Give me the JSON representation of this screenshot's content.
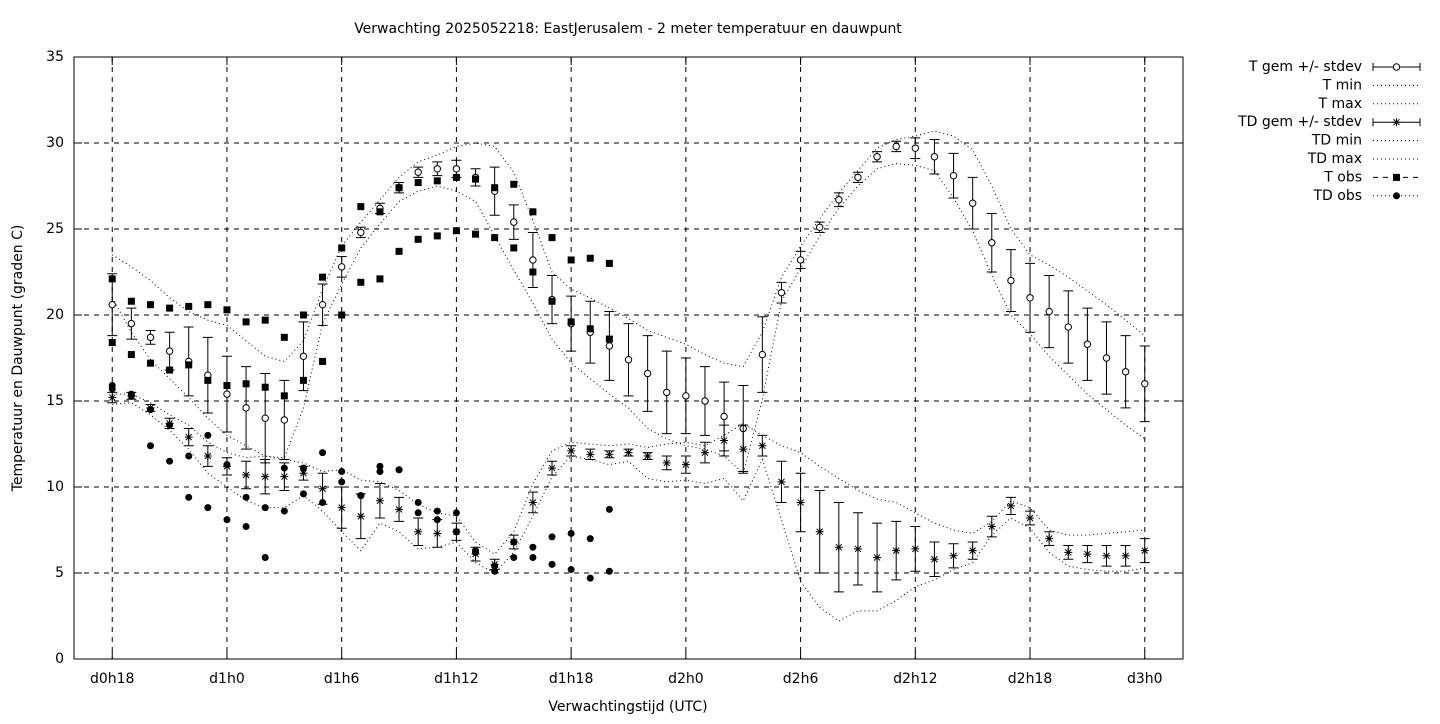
{
  "chart_data": {
    "type": "line",
    "title": "Verwachting 2025052218: EastJerusalem - 2 meter temperatuur en dauwpunt",
    "xlabel": "Verwachtingstijd (UTC)",
    "ylabel": "Temperatuur en Dauwpunt (graden C)",
    "xlim": [
      16,
      74
    ],
    "xticks": [
      {
        "value": 18,
        "label": "d0h18"
      },
      {
        "value": 24,
        "label": "d1h0"
      },
      {
        "value": 30,
        "label": "d1h6"
      },
      {
        "value": 36,
        "label": "d1h12"
      },
      {
        "value": 42,
        "label": "d1h18"
      },
      {
        "value": 48,
        "label": "d2h0"
      },
      {
        "value": 54,
        "label": "d2h6"
      },
      {
        "value": 60,
        "label": "d2h12"
      },
      {
        "value": 66,
        "label": "d2h18"
      },
      {
        "value": 72,
        "label": "d3h0"
      }
    ],
    "ylim": [
      0,
      35
    ],
    "yticks": [
      0,
      5,
      10,
      15,
      20,
      25,
      30,
      35
    ],
    "grid": true,
    "legend": "outside-right",
    "x": [
      18,
      19,
      20,
      21,
      22,
      23,
      24,
      25,
      26,
      27,
      28,
      29,
      30,
      31,
      32,
      33,
      34,
      35,
      36,
      37,
      38,
      39,
      40,
      41,
      42,
      43,
      44,
      45,
      46,
      47,
      48,
      49,
      50,
      51,
      52,
      53,
      54,
      55,
      56,
      57,
      58,
      59,
      60,
      61,
      62,
      63,
      64,
      65,
      66,
      67,
      68,
      69,
      70,
      71,
      72
    ],
    "series": [
      {
        "name": "T gem +/- stdev",
        "color": "#000000",
        "style": "errorbars",
        "marker": "open-circle",
        "values": [
          20.6,
          19.5,
          18.7,
          17.9,
          17.3,
          16.5,
          15.4,
          14.6,
          14.0,
          13.9,
          17.6,
          20.6,
          22.8,
          24.8,
          26.2,
          27.4,
          28.3,
          28.5,
          28.5,
          28.0,
          27.2,
          25.4,
          23.2,
          20.9,
          19.5,
          19.0,
          18.2,
          17.4,
          16.6,
          15.5,
          15.3,
          15.0,
          14.1,
          13.4,
          17.7,
          21.3,
          23.2,
          25.1,
          26.7,
          28.0,
          29.2,
          29.8,
          29.7,
          29.2,
          28.1,
          26.5,
          24.2,
          22.0,
          21.0,
          20.2,
          19.3,
          18.3,
          17.5,
          16.7,
          16.0
        ],
        "errors": [
          1.8,
          0.9,
          0.4,
          1.1,
          2.0,
          2.2,
          2.2,
          2.4,
          2.6,
          2.3,
          2.0,
          1.2,
          0.6,
          0.3,
          0.3,
          0.3,
          0.3,
          0.4,
          0.5,
          0.5,
          1.4,
          1.0,
          1.6,
          1.4,
          1.6,
          1.8,
          2.0,
          2.1,
          2.2,
          2.4,
          2.2,
          2.0,
          2.0,
          2.5,
          2.2,
          0.6,
          0.5,
          0.3,
          0.4,
          0.3,
          0.3,
          0.3,
          0.6,
          1.0,
          1.3,
          1.5,
          1.7,
          1.8,
          2.0,
          2.1,
          2.1,
          2.1,
          2.1,
          2.1,
          2.2
        ]
      },
      {
        "name": "T min",
        "color": "#000000",
        "style": "dotted",
        "values": [
          21.0,
          19.0,
          17.4,
          16.3,
          15.2,
          14.0,
          13.0,
          12.4,
          11.8,
          11.7,
          14.6,
          19.5,
          21.8,
          23.9,
          25.3,
          26.6,
          27.2,
          27.5,
          27.2,
          26.6,
          24.6,
          22.6,
          20.7,
          18.6,
          17.2,
          16.3,
          15.4,
          14.6,
          13.4,
          12.8,
          12.4,
          12.2,
          11.8,
          10.8,
          15.1,
          20.8,
          22.7,
          24.6,
          26.2,
          27.5,
          28.5,
          28.8,
          28.7,
          28.4,
          26.8,
          24.9,
          22.3,
          20.0,
          18.9,
          17.6,
          16.5,
          15.4,
          14.5,
          13.6,
          12.8
        ]
      },
      {
        "name": "T max",
        "color": "#000000",
        "style": "dotted",
        "values": [
          23.5,
          22.8,
          22.0,
          21.0,
          20.2,
          19.7,
          19.4,
          18.5,
          17.6,
          17.3,
          18.5,
          21.5,
          24.0,
          25.4,
          26.7,
          28.0,
          28.9,
          29.3,
          29.8,
          30.0,
          29.8,
          28.3,
          25.5,
          22.5,
          21.5,
          21.0,
          20.4,
          19.8,
          19.1,
          18.7,
          18.3,
          17.7,
          17.2,
          17.0,
          19.0,
          22.2,
          24.0,
          25.6,
          27.1,
          28.4,
          29.7,
          30.2,
          30.4,
          30.7,
          30.4,
          29.6,
          27.5,
          25.0,
          23.5,
          22.9,
          22.2,
          21.4,
          20.6,
          19.7,
          18.8
        ]
      },
      {
        "name": "TD gem +/- stdev",
        "color": "#000000",
        "style": "errorbars",
        "marker": "star",
        "values": [
          15.2,
          15.3,
          14.6,
          13.7,
          12.9,
          11.8,
          11.2,
          10.7,
          10.6,
          10.6,
          10.8,
          9.9,
          8.8,
          8.3,
          9.2,
          8.7,
          7.4,
          7.3,
          7.4,
          6.1,
          5.5,
          6.8,
          9.1,
          11.1,
          12.1,
          11.9,
          11.9,
          12.0,
          11.8,
          11.4,
          11.3,
          12.0,
          12.7,
          12.2,
          12.4,
          10.3,
          9.1,
          7.4,
          6.5,
          6.4,
          5.9,
          6.3,
          6.4,
          5.8,
          6.0,
          6.3,
          7.7,
          8.9,
          8.2,
          7.0,
          6.2,
          6.1,
          6.0,
          6.0,
          6.3
        ],
        "errors": [
          0.3,
          0.2,
          0.2,
          0.3,
          0.5,
          0.6,
          0.5,
          0.8,
          1.0,
          0.8,
          0.4,
          0.9,
          1.2,
          1.3,
          1.0,
          0.7,
          0.8,
          0.8,
          0.5,
          0.4,
          0.3,
          0.4,
          0.6,
          0.4,
          0.3,
          0.3,
          0.2,
          0.2,
          0.2,
          0.4,
          0.5,
          0.6,
          0.9,
          1.4,
          0.6,
          1.2,
          1.7,
          2.4,
          2.6,
          2.1,
          2.0,
          1.7,
          1.3,
          1.0,
          0.7,
          0.5,
          0.6,
          0.5,
          0.4,
          0.4,
          0.4,
          0.5,
          0.6,
          0.6,
          0.7
        ]
      },
      {
        "name": "TD min",
        "color": "#000000",
        "style": "dotted",
        "values": [
          14.8,
          14.9,
          14.2,
          13.3,
          12.2,
          10.8,
          10.0,
          9.2,
          8.8,
          8.8,
          9.5,
          8.6,
          7.4,
          6.3,
          7.9,
          7.4,
          6.4,
          6.5,
          6.8,
          5.6,
          5.0,
          6.2,
          8.3,
          10.6,
          11.8,
          11.6,
          11.3,
          11.5,
          10.5,
          10.3,
          10.4,
          10.2,
          10.5,
          9.2,
          11.6,
          8.1,
          4.5,
          3.0,
          2.2,
          2.8,
          2.8,
          3.4,
          4.2,
          4.6,
          5.2,
          5.6,
          7.2,
          8.2,
          7.6,
          6.2,
          5.4,
          5.2,
          5.1,
          5.1,
          5.3
        ]
      },
      {
        "name": "TD max",
        "color": "#000000",
        "style": "dotted",
        "values": [
          15.4,
          15.4,
          14.9,
          14.2,
          13.6,
          12.6,
          12.0,
          11.7,
          11.8,
          11.6,
          11.4,
          10.9,
          11.0,
          10.4,
          10.3,
          9.8,
          9.0,
          8.5,
          8.3,
          6.8,
          6.1,
          7.4,
          10.2,
          12.1,
          12.6,
          12.5,
          12.4,
          12.5,
          12.3,
          12.5,
          12.6,
          12.4,
          13.0,
          13.7,
          13.0,
          12.4,
          12.0,
          11.2,
          10.5,
          9.8,
          9.3,
          9.1,
          8.5,
          7.9,
          7.5,
          7.3,
          8.0,
          9.2,
          8.8,
          7.5,
          7.2,
          7.2,
          7.3,
          7.4,
          7.5
        ]
      },
      {
        "name": "T obs",
        "color": "#000000",
        "style": "points",
        "marker": "square",
        "x": [
          18,
          18,
          19,
          19,
          20,
          20,
          21,
          21,
          22,
          22,
          23,
          23,
          24,
          24,
          25,
          25,
          26,
          26,
          27,
          27,
          28,
          28,
          29,
          29,
          30,
          30,
          31,
          31,
          32,
          32,
          33,
          33,
          34,
          34,
          35,
          35,
          36,
          36,
          37,
          37,
          38,
          38,
          39,
          39,
          40,
          40,
          41,
          41,
          42,
          42,
          43,
          43,
          44,
          44
        ],
        "values": [
          22.1,
          18.4,
          20.8,
          17.7,
          20.6,
          17.2,
          20.4,
          16.8,
          20.5,
          17.1,
          20.6,
          16.2,
          20.3,
          15.9,
          19.6,
          16.0,
          19.7,
          15.8,
          18.7,
          15.3,
          20.0,
          16.2,
          22.2,
          17.3,
          23.9,
          20.0,
          26.3,
          21.9,
          26.0,
          22.1,
          27.4,
          23.7,
          27.7,
          24.4,
          27.8,
          24.6,
          28.0,
          24.9,
          27.9,
          24.7,
          27.4,
          24.5,
          27.6,
          23.9,
          26.0,
          22.5,
          24.5,
          20.8,
          23.2,
          19.6,
          23.3,
          19.2,
          23.0,
          18.6
        ]
      },
      {
        "name": "TD obs",
        "color": "#000000",
        "style": "points",
        "marker": "dot",
        "x": [
          18,
          18,
          19,
          19,
          20,
          20,
          21,
          21,
          22,
          22,
          23,
          23,
          24,
          24,
          25,
          25,
          26,
          26,
          27,
          27,
          28,
          28,
          29,
          29,
          30,
          30,
          31,
          31,
          32,
          32,
          33,
          33,
          34,
          34,
          35,
          35,
          36,
          36,
          37,
          37,
          38,
          38,
          39,
          39,
          40,
          40,
          41,
          41,
          42,
          42,
          43,
          43,
          44,
          44
        ],
        "values": [
          15.9,
          15.7,
          15.4,
          15.3,
          14.5,
          12.4,
          13.6,
          11.5,
          11.8,
          9.4,
          13.0,
          8.8,
          11.3,
          8.1,
          9.4,
          7.7,
          8.8,
          5.9,
          11.1,
          8.6,
          11.1,
          9.6,
          12.0,
          9.1,
          10.9,
          10.3,
          9.5,
          9.5,
          11.2,
          10.9,
          11.0,
          11.0,
          9.1,
          8.5,
          8.6,
          8.1,
          8.5,
          7.4,
          6.3,
          6.2,
          5.1,
          5.4,
          6.8,
          5.9,
          6.5,
          5.9,
          7.1,
          5.5,
          7.3,
          5.2,
          7.0,
          4.7,
          8.7,
          5.1
        ]
      }
    ]
  }
}
